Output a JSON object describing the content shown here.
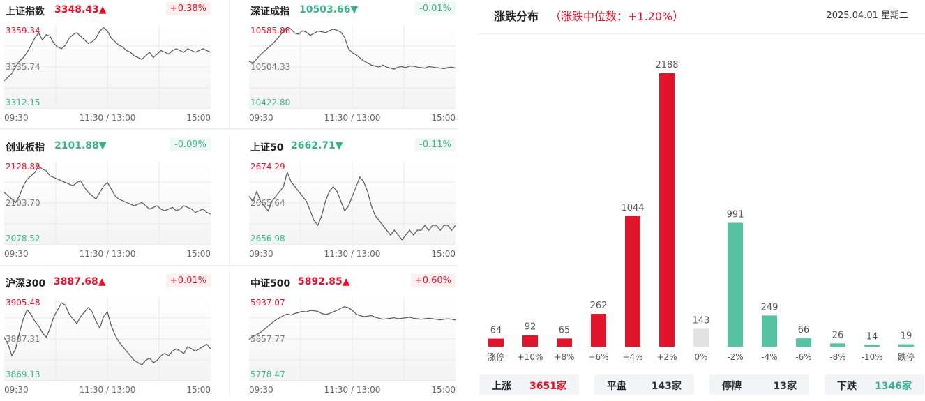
{
  "indices": [
    {
      "name": "上证指数",
      "value": "3348.43",
      "arrow": "▲",
      "dir": "up",
      "change": "+0.38%",
      "high": "3359.34",
      "mid": "3335.74",
      "low": "3312.15",
      "t_start": "09:30",
      "t_mid": "11:30 / 13:00",
      "t_end": "15:00",
      "series": [
        3328,
        3330,
        3332,
        3336,
        3339,
        3341,
        3344,
        3348,
        3352,
        3355,
        3351,
        3354,
        3353,
        3349,
        3347,
        3346,
        3348,
        3352,
        3354,
        3355,
        3353,
        3351,
        3349,
        3350,
        3352,
        3356,
        3358,
        3356,
        3352,
        3350,
        3348,
        3347,
        3345,
        3344,
        3342,
        3341,
        3340,
        3342,
        3344,
        3341,
        3343,
        3345,
        3344,
        3343,
        3345,
        3346,
        3345,
        3344,
        3346,
        3345,
        3344,
        3345,
        3346,
        3345,
        3344
      ]
    },
    {
      "name": "深证成指",
      "value": "10503.66",
      "arrow": "▼",
      "dir": "down",
      "change": "-0.01%",
      "high": "10585.86",
      "mid": "10504.33",
      "low": "10422.80",
      "t_start": "09:30",
      "t_mid": "11:30 / 13:00",
      "t_end": "15:00",
      "series": [
        10515,
        10512,
        10520,
        10528,
        10535,
        10542,
        10548,
        10556,
        10565,
        10574,
        10582,
        10578,
        10570,
        10568,
        10575,
        10572,
        10566,
        10570,
        10574,
        10573,
        10571,
        10575,
        10578,
        10576,
        10572,
        10562,
        10540,
        10532,
        10528,
        10522,
        10516,
        10512,
        10508,
        10506,
        10504,
        10508,
        10504,
        10502,
        10500,
        10504,
        10505,
        10503,
        10506,
        10506,
        10504,
        10503,
        10502,
        10505,
        10504,
        10503,
        10502,
        10501,
        10503,
        10504,
        10502
      ]
    },
    {
      "name": "创业板指",
      "value": "2101.88",
      "arrow": "▼",
      "dir": "down",
      "change": "-0.09%",
      "high": "2128.88",
      "mid": "2103.70",
      "low": "2078.52",
      "t_start": "09:30",
      "t_mid": "11:30 / 13:00",
      "t_end": "15:00",
      "series": [
        2110,
        2108,
        2106,
        2104,
        2108,
        2114,
        2118,
        2120,
        2122,
        2126,
        2124,
        2123,
        2120,
        2119,
        2118,
        2117,
        2116,
        2115,
        2114,
        2116,
        2117,
        2113,
        2110,
        2108,
        2106,
        2110,
        2114,
        2116,
        2112,
        2108,
        2106,
        2105,
        2104,
        2103,
        2102,
        2103,
        2104,
        2102,
        2100,
        2101,
        2102,
        2100,
        2099,
        2100,
        2101,
        2099,
        2100,
        2102,
        2101,
        2100,
        2098,
        2099,
        2100,
        2098,
        2097
      ]
    },
    {
      "name": "上证50",
      "value": "2662.71",
      "arrow": "▼",
      "dir": "down",
      "change": "-0.11%",
      "high": "2674.29",
      "mid": "2665.64",
      "low": "2656.98",
      "t_start": "09:30",
      "t_mid": "11:30 / 13:00",
      "t_end": "15:00",
      "series": [
        2667,
        2666,
        2668,
        2666,
        2665,
        2664,
        2666,
        2667,
        2668,
        2669,
        2672,
        2670,
        2669,
        2668,
        2667,
        2666,
        2664,
        2662,
        2661,
        2663,
        2666,
        2668,
        2669,
        2668,
        2666,
        2664,
        2665,
        2667,
        2669,
        2671,
        2670,
        2668,
        2665,
        2663,
        2662,
        2661,
        2660,
        2659,
        2660,
        2659,
        2658,
        2659,
        2660,
        2659,
        2660,
        2660,
        2661,
        2660,
        2661,
        2661,
        2660,
        2661,
        2661,
        2660,
        2661
      ]
    },
    {
      "name": "沪深300",
      "value": "3887.68",
      "arrow": "▲",
      "dir": "up",
      "change": "+0.01%",
      "high": "3905.48",
      "mid": "3887.31",
      "low": "3869.13",
      "t_start": "09:30",
      "t_mid": "11:30 / 13:00",
      "t_end": "15:00",
      "series": [
        3888,
        3885,
        3880,
        3883,
        3890,
        3896,
        3900,
        3898,
        3895,
        3893,
        3890,
        3888,
        3892,
        3897,
        3900,
        3903,
        3902,
        3898,
        3896,
        3894,
        3897,
        3899,
        3901,
        3899,
        3895,
        3892,
        3897,
        3899,
        3893,
        3889,
        3886,
        3884,
        3882,
        3880,
        3878,
        3877,
        3876,
        3878,
        3879,
        3877,
        3878,
        3880,
        3881,
        3880,
        3882,
        3883,
        3882,
        3881,
        3884,
        3883,
        3882,
        3883,
        3884,
        3885,
        3883
      ]
    },
    {
      "name": "中证500",
      "value": "5892.85",
      "arrow": "▲",
      "dir": "up",
      "change": "+0.60%",
      "high": "5937.07",
      "mid": "5857.77",
      "low": "5778.47",
      "t_start": "09:30",
      "t_mid": "11:30 / 13:00",
      "t_end": "15:00",
      "series": [
        5857,
        5862,
        5866,
        5870,
        5876,
        5882,
        5888,
        5894,
        5898,
        5902,
        5905,
        5903,
        5906,
        5908,
        5910,
        5909,
        5912,
        5911,
        5910,
        5906,
        5904,
        5906,
        5909,
        5912,
        5916,
        5919,
        5917,
        5912,
        5905,
        5902,
        5900,
        5901,
        5902,
        5899,
        5897,
        5895,
        5896,
        5897,
        5898,
        5896,
        5897,
        5898,
        5899,
        5897,
        5896,
        5895,
        5896,
        5897,
        5896,
        5895,
        5894,
        5895,
        5896,
        5895,
        5894
      ]
    }
  ],
  "distribution": {
    "title": "涨跌分布",
    "median_text": "（涨跌中位数：+1.20%）",
    "date": "2025.04.01 星期二"
  },
  "chart_data": {
    "type": "bar",
    "categories": [
      "涨停",
      "+10%",
      "+8%",
      "+6%",
      "+4%",
      "+2%",
      "0%",
      "-2%",
      "-4%",
      "-6%",
      "-8%",
      "-10%",
      "跌停"
    ],
    "values": [
      64,
      92,
      65,
      262,
      1044,
      2188,
      143,
      991,
      249,
      66,
      26,
      14,
      19
    ],
    "colors": [
      "#e0142a",
      "#e0142a",
      "#e0142a",
      "#e0142a",
      "#e0142a",
      "#e0142a",
      "#e2e2e2",
      "#55c3a1",
      "#55c3a1",
      "#55c3a1",
      "#55c3a1",
      "#55c3a1",
      "#55c3a1"
    ]
  },
  "stats": [
    {
      "label": "上涨",
      "value": "3651家",
      "dir": "up"
    },
    {
      "label": "平盘",
      "value": "143家",
      "dir": "flat"
    },
    {
      "label": "停牌",
      "value": "13家",
      "dir": "flat"
    },
    {
      "label": "下跌",
      "value": "1346家",
      "dir": "down"
    }
  ],
  "colors": {
    "up": "#e0142a",
    "down": "#3bb28f"
  }
}
